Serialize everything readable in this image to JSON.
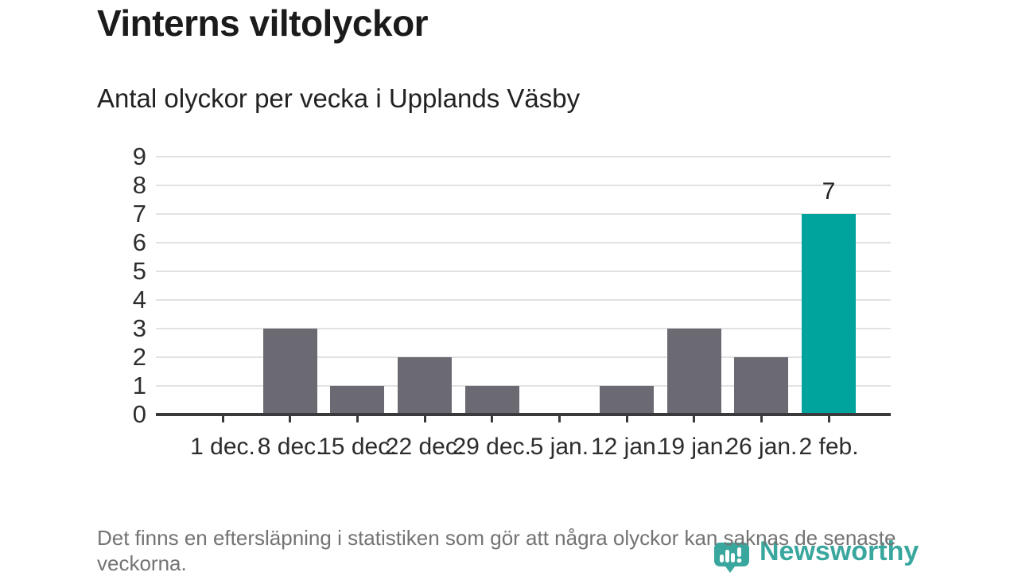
{
  "header": {
    "title": "Vinterns viltolyckor",
    "subtitle": "Antal olyckor per vecka i Upplands Väsby"
  },
  "chart_data": {
    "type": "bar",
    "title": "Vinterns viltolyckor",
    "subtitle": "Antal olyckor per vecka i Upplands Väsby",
    "categories": [
      "1 dec.",
      "8 dec.",
      "15 dec.",
      "22 dec.",
      "29 dec.",
      "5 jan.",
      "12 jan.",
      "19 jan.",
      "26 jan.",
      "2 feb."
    ],
    "values": [
      0,
      3,
      1,
      2,
      1,
      0,
      1,
      3,
      2,
      7
    ],
    "xlabel": "",
    "ylabel": "",
    "ylim": [
      0,
      9
    ],
    "yticks": [
      0,
      1,
      2,
      3,
      4,
      5,
      6,
      7,
      8,
      9
    ],
    "grid": "horizontal",
    "legend": "none",
    "highlight_index": 9,
    "value_labels": {
      "9": "7"
    },
    "colors": {
      "bar": "#6b6a72",
      "highlight": "#00a49c",
      "grid": "#e2e2e2",
      "axis": "#3a3a3c",
      "tick_text": "#2d2d2d"
    }
  },
  "footer": {
    "note": "Det finns en eftersläpning i statistiken som gör att några olyckor kan saknas de senaste veckorna."
  },
  "branding": {
    "name": "Newsworthy",
    "logo_icon": "speech-bubble-bar-chart-icon",
    "color": "#3aa79f"
  }
}
